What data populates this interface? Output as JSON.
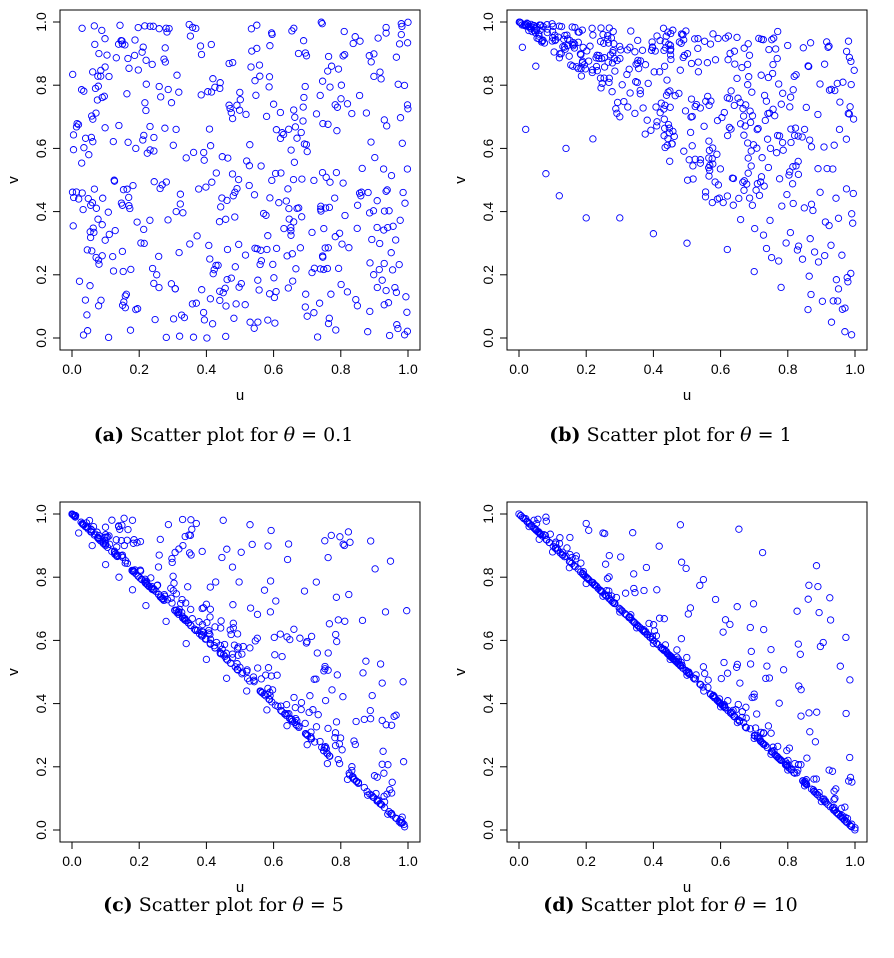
{
  "chart_data": [
    {
      "type": "scatter",
      "caption_tag": "(a)",
      "caption_text": "Scatter plot for",
      "caption_symbol": "θ",
      "caption_value": "= 0.1",
      "xlabel": "u",
      "ylabel": "v",
      "xlim": [
        0,
        1
      ],
      "ylim": [
        0,
        1
      ],
      "xticks": [
        "0.0",
        "0.2",
        "0.4",
        "0.6",
        "0.8",
        "1.0"
      ],
      "yticks": [
        "0.0",
        "0.2",
        "0.4",
        "0.6",
        "0.8",
        "1.0"
      ],
      "marker_color": "#0000ff",
      "theta": 0.1,
      "n_points": 500,
      "points": [
        [
          0.03,
          0.98
        ],
        [
          0.08,
          0.9
        ],
        [
          0.15,
          0.93
        ],
        [
          0.28,
          0.98
        ],
        [
          0.55,
          0.99
        ],
        [
          0.66,
          0.98
        ],
        [
          0.81,
          0.97
        ],
        [
          0.98,
          0.96
        ],
        [
          0.07,
          0.79
        ],
        [
          0.22,
          0.72
        ],
        [
          0.44,
          0.79
        ],
        [
          0.6,
          0.74
        ],
        [
          0.79,
          0.73
        ],
        [
          0.92,
          0.82
        ],
        [
          0.05,
          0.58
        ],
        [
          0.19,
          0.6
        ],
        [
          0.34,
          0.57
        ],
        [
          0.52,
          0.56
        ],
        [
          0.7,
          0.59
        ],
        [
          0.89,
          0.62
        ],
        [
          0.02,
          0.44
        ],
        [
          0.15,
          0.42
        ],
        [
          0.31,
          0.4
        ],
        [
          0.48,
          0.45
        ],
        [
          0.67,
          0.41
        ],
        [
          0.85,
          0.42
        ],
        [
          0.09,
          0.26
        ],
        [
          0.24,
          0.22
        ],
        [
          0.41,
          0.25
        ],
        [
          0.58,
          0.28
        ],
        [
          0.76,
          0.22
        ],
        [
          0.95,
          0.27
        ],
        [
          0.04,
          0.12
        ],
        [
          0.19,
          0.09
        ],
        [
          0.37,
          0.11
        ],
        [
          0.53,
          0.05
        ],
        [
          0.72,
          0.08
        ],
        [
          0.88,
          0.02
        ],
        [
          0.97,
          0.03
        ],
        [
          0.99,
          0.01
        ]
      ]
    },
    {
      "type": "scatter",
      "caption_tag": "(b)",
      "caption_text": "Scatter plot for",
      "caption_symbol": "θ",
      "caption_value": "= 1",
      "xlabel": "u",
      "ylabel": "v",
      "xlim": [
        0,
        1
      ],
      "ylim": [
        0,
        1
      ],
      "xticks": [
        "0.0",
        "0.2",
        "0.4",
        "0.6",
        "0.8",
        "1.0"
      ],
      "yticks": [
        "0.0",
        "0.2",
        "0.4",
        "0.6",
        "0.8",
        "1.0"
      ],
      "marker_color": "#0000ff",
      "theta": 1,
      "n_points": 500,
      "points": [
        [
          0.01,
          0.92
        ],
        [
          0.05,
          0.86
        ],
        [
          0.1,
          0.97
        ],
        [
          0.16,
          0.86
        ],
        [
          0.25,
          0.96
        ],
        [
          0.33,
          0.92
        ],
        [
          0.43,
          0.98
        ],
        [
          0.57,
          0.93
        ],
        [
          0.77,
          0.97
        ],
        [
          0.92,
          0.92
        ],
        [
          0.02,
          0.66
        ],
        [
          0.08,
          0.52
        ],
        [
          0.14,
          0.6
        ],
        [
          0.22,
          0.63
        ],
        [
          0.3,
          0.7
        ],
        [
          0.45,
          0.73
        ],
        [
          0.62,
          0.76
        ],
        [
          0.85,
          0.66
        ],
        [
          0.12,
          0.45
        ],
        [
          0.2,
          0.38
        ],
        [
          0.3,
          0.38
        ],
        [
          0.4,
          0.33
        ],
        [
          0.5,
          0.3
        ],
        [
          0.62,
          0.28
        ],
        [
          0.7,
          0.21
        ],
        [
          0.78,
          0.16
        ],
        [
          0.86,
          0.09
        ],
        [
          0.93,
          0.05
        ],
        [
          0.97,
          0.02
        ],
        [
          0.99,
          0.01
        ]
      ]
    },
    {
      "type": "scatter",
      "caption_tag": "(c)",
      "caption_text": "Scatter plot for",
      "caption_symbol": "θ",
      "caption_value": "= 5",
      "xlabel": "u",
      "ylabel": "v",
      "xlim": [
        0,
        1
      ],
      "ylim": [
        0,
        1
      ],
      "xticks": [
        "0.0",
        "0.2",
        "0.4",
        "0.6",
        "0.8",
        "1.0"
      ],
      "yticks": [
        "0.0",
        "0.2",
        "0.4",
        "0.6",
        "0.8",
        "1.0"
      ],
      "marker_color": "#0000ff",
      "theta": 5,
      "n_points": 500,
      "points": [
        [
          0.0,
          1.0
        ],
        [
          0.02,
          0.94
        ],
        [
          0.06,
          0.9
        ],
        [
          0.1,
          0.84
        ],
        [
          0.14,
          0.8
        ],
        [
          0.18,
          0.76
        ],
        [
          0.22,
          0.71
        ],
        [
          0.28,
          0.66
        ],
        [
          0.34,
          0.59
        ],
        [
          0.4,
          0.54
        ],
        [
          0.46,
          0.48
        ],
        [
          0.52,
          0.44
        ],
        [
          0.58,
          0.38
        ],
        [
          0.64,
          0.33
        ],
        [
          0.7,
          0.27
        ],
        [
          0.76,
          0.21
        ],
        [
          0.82,
          0.16
        ],
        [
          0.88,
          0.11
        ],
        [
          0.94,
          0.05
        ],
        [
          0.99,
          0.01
        ],
        [
          0.18,
          0.98
        ],
        [
          0.37,
          0.97
        ],
        [
          0.45,
          0.98
        ],
        [
          0.48,
          0.64
        ],
        [
          0.62,
          0.62
        ],
        [
          0.73,
          0.56
        ],
        [
          0.87,
          0.35
        ],
        [
          0.33,
          0.9
        ]
      ]
    },
    {
      "type": "scatter",
      "caption_tag": "(d)",
      "caption_text": "Scatter plot for",
      "caption_symbol": "θ",
      "caption_value": "= 10",
      "xlabel": "u",
      "ylabel": "v",
      "xlim": [
        0,
        1
      ],
      "ylim": [
        0,
        1
      ],
      "xticks": [
        "0.0",
        "0.2",
        "0.4",
        "0.6",
        "0.8",
        "1.0"
      ],
      "yticks": [
        "0.0",
        "0.2",
        "0.4",
        "0.6",
        "0.8",
        "1.0"
      ],
      "marker_color": "#0000ff",
      "theta": 10,
      "n_points": 500,
      "points": [
        [
          0.0,
          1.0
        ],
        [
          0.03,
          0.96
        ],
        [
          0.06,
          0.92
        ],
        [
          0.1,
          0.88
        ],
        [
          0.15,
          0.83
        ],
        [
          0.2,
          0.78
        ],
        [
          0.25,
          0.74
        ],
        [
          0.3,
          0.69
        ],
        [
          0.35,
          0.64
        ],
        [
          0.4,
          0.59
        ],
        [
          0.45,
          0.54
        ],
        [
          0.5,
          0.49
        ],
        [
          0.55,
          0.44
        ],
        [
          0.6,
          0.39
        ],
        [
          0.65,
          0.34
        ],
        [
          0.7,
          0.29
        ],
        [
          0.75,
          0.24
        ],
        [
          0.8,
          0.19
        ],
        [
          0.85,
          0.14
        ],
        [
          0.9,
          0.09
        ],
        [
          0.95,
          0.05
        ],
        [
          0.99,
          0.01
        ],
        [
          0.08,
          0.99
        ],
        [
          0.2,
          0.97
        ],
        [
          0.25,
          0.94
        ],
        [
          0.41,
          0.76
        ],
        [
          0.61,
          0.53
        ],
        [
          0.7,
          0.43
        ]
      ]
    }
  ]
}
